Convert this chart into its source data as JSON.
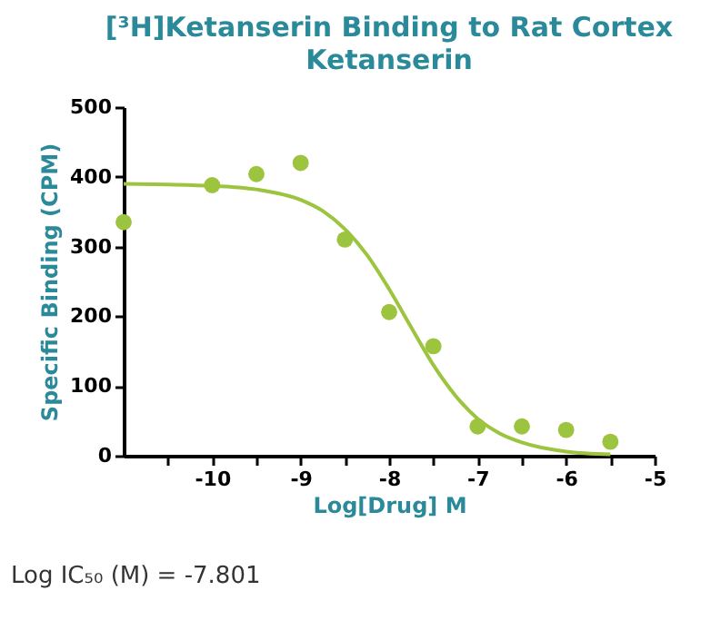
{
  "chart_data": {
    "type": "scatter",
    "title": "[³H]Ketanserin Binding to Rat Cortex",
    "subtitle": "Ketanserin",
    "xlabel": "Log[Drug] M",
    "ylabel": "Specific Binding (CPM)",
    "annotations": [
      "Log IC₅₀ (M) = -7.801"
    ],
    "xlim": [
      -11,
      -5
    ],
    "xticks": [
      {
        "value": -10.5,
        "label": null
      },
      -10,
      {
        "value": -9.5,
        "label": null
      },
      -9,
      {
        "value": -8.5,
        "label": null
      },
      -8,
      {
        "value": -7.5,
        "label": null
      },
      -7,
      {
        "value": -6.5,
        "label": null
      },
      -6,
      {
        "value": -5.5,
        "label": null
      },
      -5
    ],
    "ylim": [
      0,
      500
    ],
    "yticks": [
      0,
      100,
      200,
      300,
      400,
      500
    ],
    "grid": false,
    "series": [
      {
        "color": "#9cc43e",
        "marker": "circle",
        "x": [
          -11,
          -10,
          -9.5,
          -9,
          -8.5,
          -8,
          -7.5,
          -7,
          -6.5,
          -6,
          -5.5
        ],
        "values": [
          335,
          388,
          404,
          420,
          310,
          206,
          157,
          42,
          42,
          37,
          20
        ]
      },
      {
        "type": "line",
        "color": "#9cc43e",
        "line_style": "solid",
        "x": [
          -11,
          -10.5,
          -10,
          -9.5,
          -9,
          -8.75,
          -8.5,
          -8.25,
          -8,
          -7.75,
          -7.5,
          -7.25,
          -7,
          -6.75,
          -6.5,
          -6,
          -5.5
        ],
        "values": [
          390,
          389,
          387,
          382,
          367,
          351,
          325,
          288,
          239,
          184,
          130,
          86,
          53,
          32,
          19,
          6,
          2
        ]
      }
    ]
  }
}
